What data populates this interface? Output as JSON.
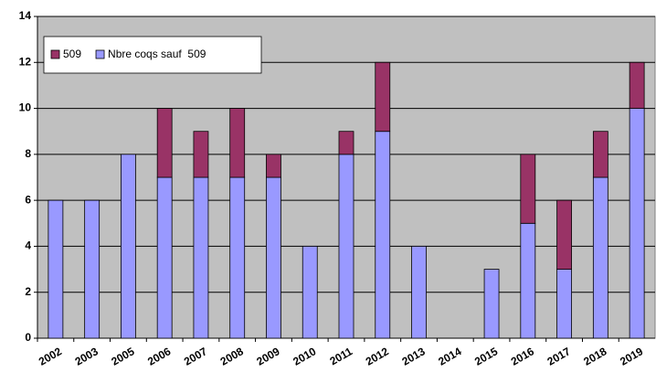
{
  "chart_data": {
    "type": "stacked-bar",
    "categories": [
      "2002",
      "2003",
      "2005",
      "2006",
      "2007",
      "2008",
      "2009",
      "2010",
      "2011",
      "2012",
      "2013",
      "2014",
      "2015",
      "2016",
      "2017",
      "2018",
      "2019"
    ],
    "series": [
      {
        "name": "509",
        "color": "#993366",
        "values": [
          0,
          0,
          0,
          3,
          2,
          3,
          1,
          0,
          1,
          3,
          0,
          0,
          0,
          3,
          3,
          2,
          2
        ]
      },
      {
        "name": "Nbre coqs sauf  509",
        "color": "#9999ff",
        "values": [
          6,
          6,
          8,
          7,
          7,
          7,
          7,
          4,
          8,
          9,
          4,
          0,
          3,
          5,
          3,
          7,
          10
        ]
      }
    ],
    "ylim": [
      0,
      14
    ],
    "yticks": [
      0,
      2,
      4,
      6,
      8,
      10,
      12,
      14
    ],
    "grid": true,
    "legend": "top-left"
  }
}
